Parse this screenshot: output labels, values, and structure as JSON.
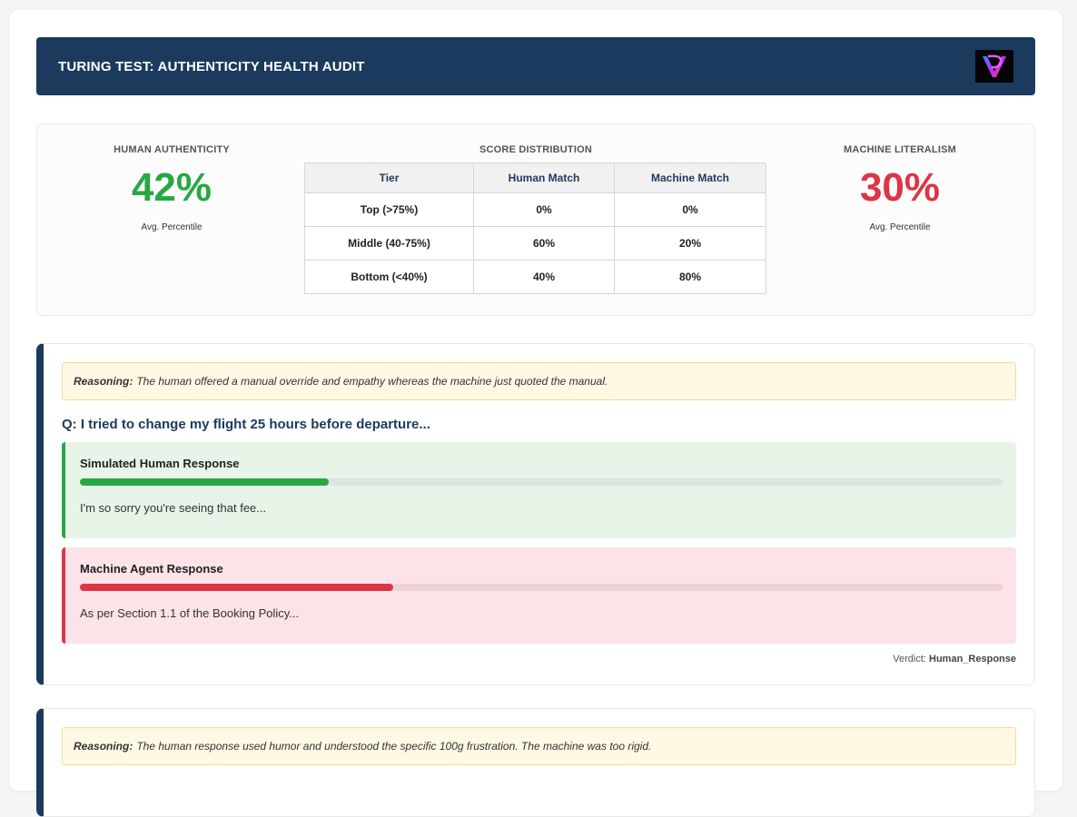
{
  "header": {
    "title": "TURING TEST: AUTHENTICITY HEALTH AUDIT",
    "logo_icon": "v-logo-icon"
  },
  "summary": {
    "human": {
      "label": "HUMAN AUTHENTICITY",
      "value": "42%",
      "sub": "Avg. Percentile",
      "color": "#28a745"
    },
    "machine": {
      "label": "MACHINE LITERALISM",
      "value": "30%",
      "sub": "Avg. Percentile",
      "color": "#dc3545"
    },
    "distribution": {
      "label": "SCORE DISTRIBUTION",
      "headers": [
        "Tier",
        "Human Match",
        "Machine Match"
      ],
      "rows": [
        [
          "Top (>75%)",
          "0%",
          "0%"
        ],
        [
          "Middle (40-75%)",
          "60%",
          "20%"
        ],
        [
          "Bottom (<40%)",
          "40%",
          "80%"
        ]
      ]
    }
  },
  "cards": [
    {
      "reasoning_label": "Reasoning:",
      "reasoning": "The human offered a manual override and empathy whereas the machine just quoted the manual.",
      "question": "Q: I tried to change my flight 25 hours before departure...",
      "human": {
        "title": "Simulated Human Response",
        "score": 0.27,
        "text": "I'm so sorry you're seeing that fee..."
      },
      "machine": {
        "title": "Machine Agent Response",
        "score": 0.34,
        "text": "As per Section 1.1 of the Booking Policy..."
      },
      "verdict_label": "Verdict:",
      "verdict": "Human_Response"
    },
    {
      "reasoning_label": "Reasoning:",
      "reasoning": "The human response used humor and understood the specific 100g frustration. The machine was too rigid."
    }
  ]
}
